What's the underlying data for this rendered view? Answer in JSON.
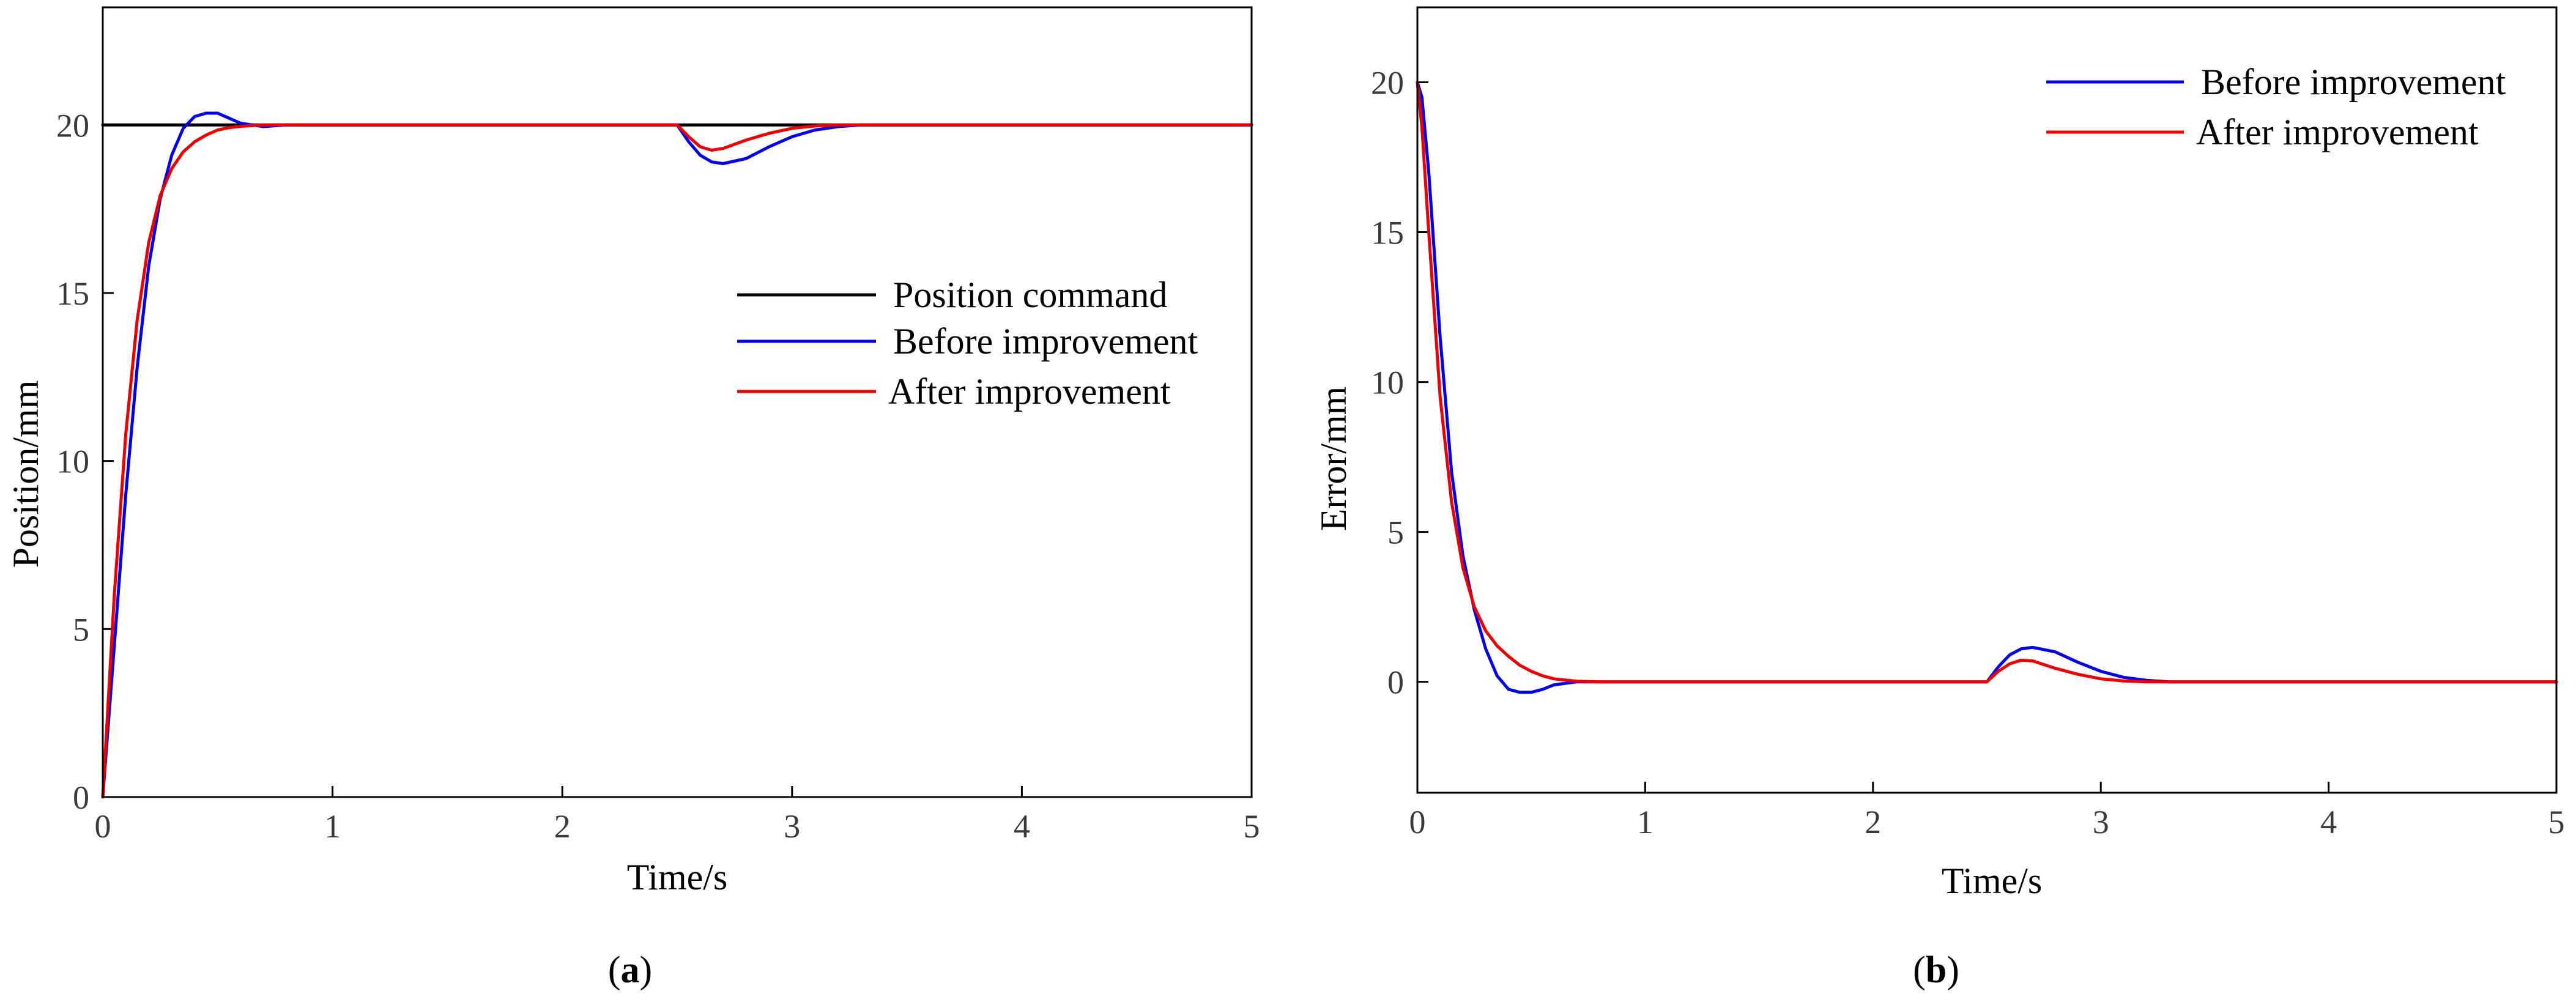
{
  "chart_data": [
    {
      "type": "line",
      "caption": "a",
      "xlabel": "Time/s",
      "ylabel": "Position/mm",
      "xlim": [
        0,
        5
      ],
      "ylim": [
        0,
        23.5
      ],
      "xticks": [
        0,
        1,
        2,
        3,
        4,
        5
      ],
      "yticks": [
        0,
        5,
        10,
        15,
        20
      ],
      "legend_position": "right-middle",
      "series": [
        {
          "name": "Position command",
          "color": "#000000",
          "x": [
            0,
            5
          ],
          "y": [
            20,
            20
          ]
        },
        {
          "name": "Before improvement",
          "color": "#0000ee",
          "x": [
            0,
            0.05,
            0.1,
            0.15,
            0.2,
            0.25,
            0.3,
            0.35,
            0.4,
            0.45,
            0.5,
            0.55,
            0.6,
            0.7,
            0.8,
            1.0,
            1.5,
            2.0,
            2.45,
            2.5,
            2.55,
            2.6,
            2.65,
            2.7,
            2.8,
            2.9,
            3.0,
            3.1,
            3.2,
            3.3,
            3.5,
            4.0,
            5.0
          ],
          "y": [
            0,
            4.5,
            9.0,
            12.8,
            15.8,
            17.8,
            19.1,
            19.9,
            20.25,
            20.35,
            20.35,
            20.2,
            20.05,
            19.95,
            20.0,
            20.0,
            20.0,
            20.0,
            20.0,
            20.0,
            19.5,
            19.1,
            18.9,
            18.85,
            19.0,
            19.35,
            19.65,
            19.85,
            19.95,
            20.0,
            20.0,
            20.0,
            20.0
          ]
        },
        {
          "name": "After improvement",
          "color": "#ee0000",
          "x": [
            0,
            0.05,
            0.1,
            0.15,
            0.2,
            0.25,
            0.3,
            0.35,
            0.4,
            0.45,
            0.5,
            0.55,
            0.6,
            0.7,
            0.8,
            1.0,
            1.5,
            2.0,
            2.45,
            2.5,
            2.55,
            2.6,
            2.65,
            2.7,
            2.8,
            2.9,
            3.0,
            3.1,
            3.2,
            3.3,
            3.5,
            4.0,
            5.0
          ],
          "y": [
            0,
            6.0,
            10.8,
            14.2,
            16.5,
            17.9,
            18.7,
            19.2,
            19.5,
            19.7,
            19.85,
            19.92,
            19.96,
            20.0,
            20.0,
            20.0,
            20.0,
            20.0,
            20.0,
            20.0,
            19.65,
            19.35,
            19.25,
            19.3,
            19.55,
            19.75,
            19.9,
            19.97,
            20.0,
            20.0,
            20.0,
            20.0,
            20.0
          ]
        }
      ]
    },
    {
      "type": "line",
      "caption": "b",
      "xlabel": "Time/s",
      "ylabel": "Error/mm",
      "xlim": [
        0,
        5
      ],
      "ylim": [
        -3.7,
        22.5
      ],
      "xticks": [
        0,
        1,
        2,
        3,
        4,
        5
      ],
      "yticks": [
        0,
        5,
        10,
        15,
        20
      ],
      "legend_position": "top-right",
      "series": [
        {
          "name": "Before improvement",
          "color": "#0000ee",
          "x": [
            0,
            0.02,
            0.05,
            0.1,
            0.15,
            0.2,
            0.25,
            0.3,
            0.35,
            0.4,
            0.45,
            0.5,
            0.55,
            0.6,
            0.7,
            0.8,
            1.0,
            1.5,
            2.0,
            2.45,
            2.5,
            2.55,
            2.6,
            2.65,
            2.7,
            2.8,
            2.9,
            3.0,
            3.1,
            3.2,
            3.3,
            3.5,
            4.0,
            5.0
          ],
          "y": [
            20,
            19.5,
            17.0,
            11.5,
            7.0,
            4.2,
            2.4,
            1.1,
            0.2,
            -0.25,
            -0.35,
            -0.35,
            -0.25,
            -0.1,
            0.0,
            0.0,
            0.0,
            0.0,
            0.0,
            0.0,
            0.0,
            0.5,
            0.9,
            1.1,
            1.15,
            1.0,
            0.65,
            0.35,
            0.15,
            0.05,
            0.0,
            0.0,
            0.0,
            0.0
          ]
        },
        {
          "name": "After improvement",
          "color": "#ee0000",
          "x": [
            0,
            0.02,
            0.05,
            0.1,
            0.15,
            0.2,
            0.25,
            0.3,
            0.35,
            0.4,
            0.45,
            0.5,
            0.55,
            0.6,
            0.7,
            0.8,
            1.0,
            1.5,
            2.0,
            2.45,
            2.5,
            2.55,
            2.6,
            2.65,
            2.7,
            2.8,
            2.9,
            3.0,
            3.1,
            3.2,
            3.3,
            3.5,
            4.0,
            5.0
          ],
          "y": [
            20,
            18.5,
            15.0,
            9.5,
            6.0,
            3.8,
            2.5,
            1.7,
            1.2,
            0.85,
            0.55,
            0.35,
            0.2,
            0.1,
            0.02,
            0.0,
            0.0,
            0.0,
            0.0,
            0.0,
            0.0,
            0.35,
            0.6,
            0.72,
            0.7,
            0.45,
            0.25,
            0.1,
            0.03,
            0.0,
            0.0,
            0.0,
            0.0,
            0.0
          ]
        }
      ]
    }
  ]
}
